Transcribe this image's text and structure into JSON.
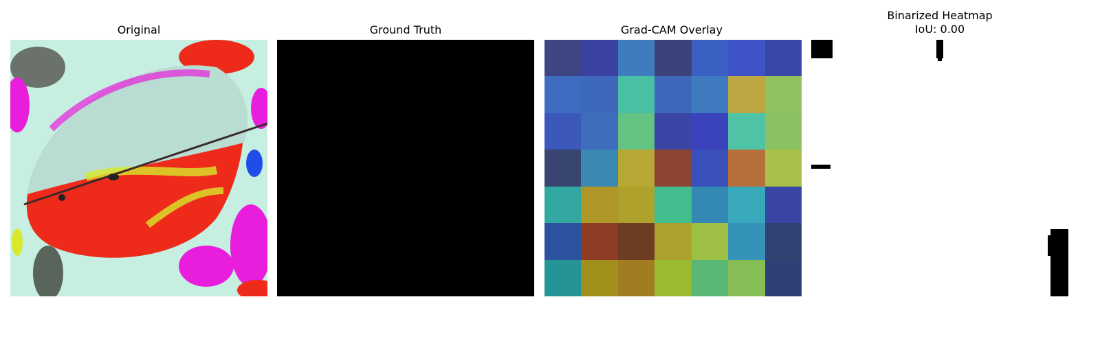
{
  "panels": {
    "original": {
      "title": "Original"
    },
    "ground_truth": {
      "title": "Ground Truth"
    },
    "gradcam": {
      "title": "Grad-CAM Overlay",
      "grid": [
        [
          "#3f4582",
          "#3b41a0",
          "#3f7cbd",
          "#3c437c",
          "#3b60c4",
          "#3d53c6",
          "#3a46a8"
        ],
        [
          "#3e6cc0",
          "#3e68bb",
          "#47c0a3",
          "#3f68bb",
          "#3e7abd",
          "#bca742",
          "#92c15f"
        ],
        [
          "#3c58bb",
          "#3d6dbb",
          "#62c382",
          "#3a45a6",
          "#3a43bc",
          "#4fc3a5",
          "#8cc161"
        ],
        [
          "#384571",
          "#3989b3",
          "#b7a835",
          "#8d4433",
          "#3a50bb",
          "#b7703c",
          "#a7c14b"
        ],
        [
          "#33a8a0",
          "#ae9629",
          "#afa22c",
          "#43be8f",
          "#3488b4",
          "#38a9bb",
          "#3a44a2"
        ],
        [
          "#2d52a0",
          "#8f3c24",
          "#6c3d23",
          "#aca12d",
          "#9cbf44",
          "#3592b8",
          "#314272"
        ],
        [
          "#259496",
          "#a2901c",
          "#a27c21",
          "#9aba2f",
          "#59b873",
          "#86be55",
          "#313f77"
        ]
      ]
    },
    "binarized": {
      "title": "Binarized Heatmap",
      "iou": "IoU: 0.00"
    }
  }
}
